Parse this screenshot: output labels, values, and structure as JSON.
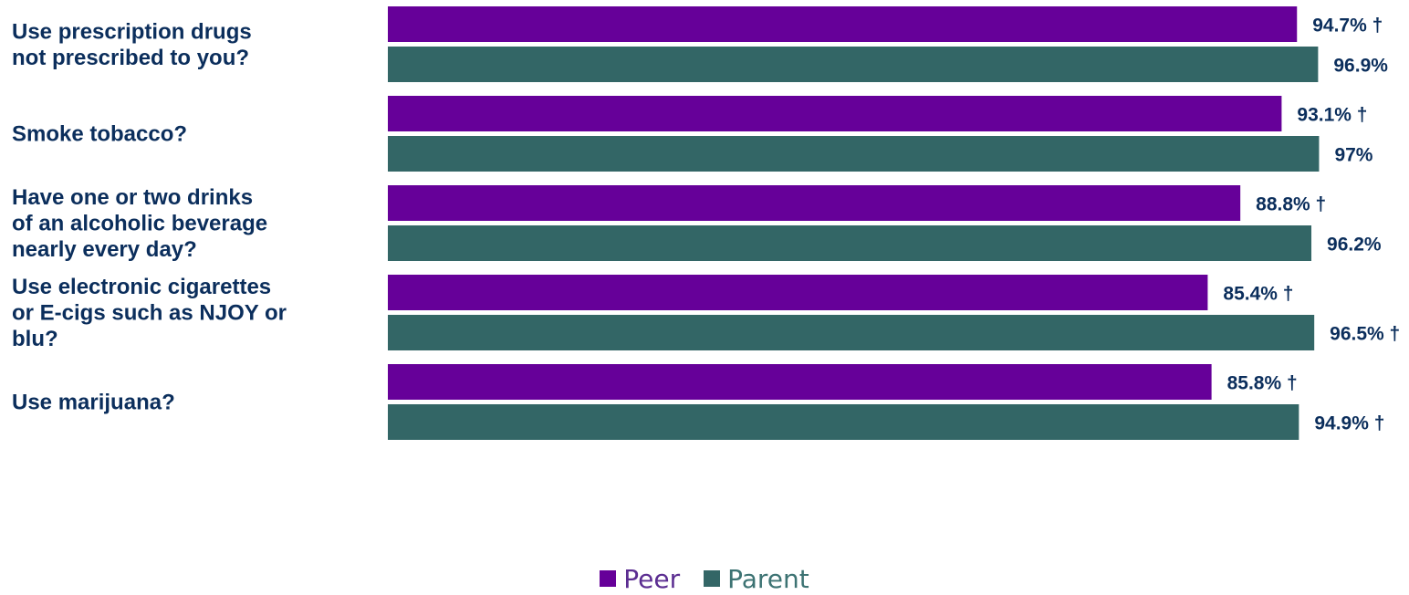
{
  "chart_data": {
    "type": "bar",
    "orientation": "horizontal",
    "categories": [
      [
        "Use prescription drugs",
        "not prescribed to you?"
      ],
      [
        "Smoke tobacco?"
      ],
      [
        "Have one or two drinks",
        "of an alcoholic beverage",
        "nearly every day?"
      ],
      [
        "Use electronic cigarettes",
        "or E-cigs such as NJOY or",
        "blu?"
      ],
      [
        "Use marijuana?"
      ]
    ],
    "series": [
      {
        "name": "Peer",
        "color": "#660099",
        "values": [
          94.7,
          93.1,
          88.8,
          85.4,
          85.8
        ],
        "labels": [
          "94.7% †",
          "93.1% †",
          "88.8% †",
          "85.4% †",
          "85.8% †"
        ]
      },
      {
        "name": "Parent",
        "color": "#336666",
        "values": [
          96.9,
          97,
          96.2,
          96.5,
          94.9
        ],
        "labels": [
          "96.9%",
          "97%",
          "96.2%",
          "96.5% †",
          "94.9% †"
        ]
      }
    ],
    "legend_position": "bottom-center",
    "grid": false
  },
  "legend_text_colors": [
    "#5b2d91",
    "#3d7373"
  ]
}
